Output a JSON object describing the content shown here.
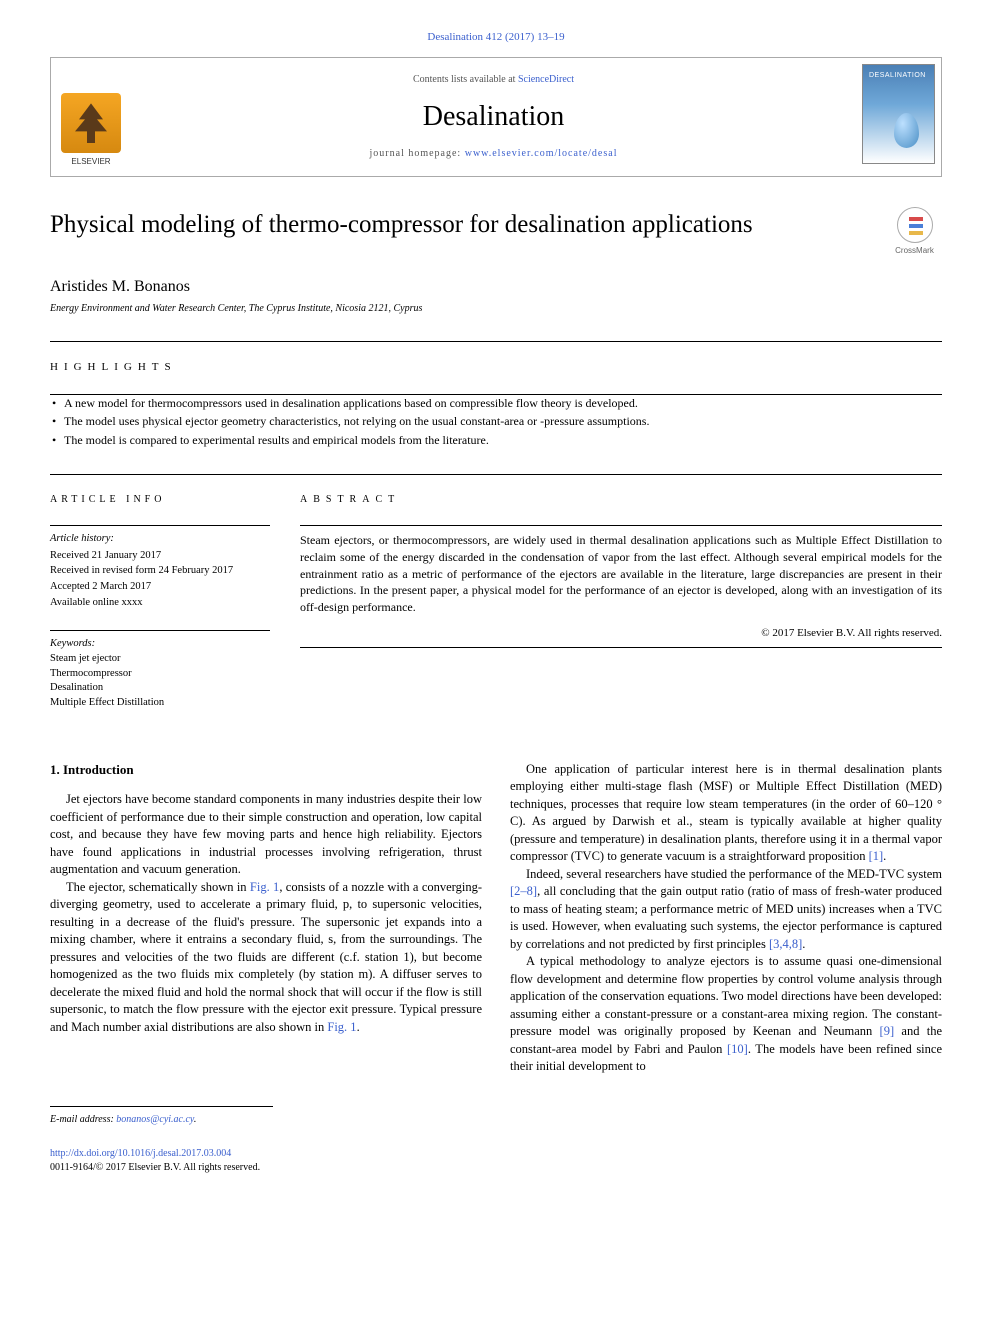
{
  "header": {
    "citation": "Desalination 412 (2017) 13–19",
    "contents_prefix": "Contents lists available at ",
    "contents_link": "ScienceDirect",
    "journal": "Desalination",
    "homepage_prefix": "journal homepage: ",
    "homepage_url": "www.elsevier.com/locate/desal",
    "publisher": "ELSEVIER",
    "cover_title": "DESALINATION"
  },
  "crossmark": {
    "label": "CrossMark"
  },
  "article": {
    "title": "Physical modeling of thermo-compressor for desalination applications",
    "author": "Aristides M. Bonanos",
    "affiliation": "Energy Environment and Water Research Center, The Cyprus Institute, Nicosia 2121, Cyprus"
  },
  "highlights": {
    "label": "highlights",
    "items": [
      "A new model for thermocompressors used in desalination applications based on compressible flow theory is developed.",
      "The model uses physical ejector geometry characteristics, not relying on the usual constant-area or -pressure assumptions.",
      "The model is compared to experimental results and empirical models from the literature."
    ]
  },
  "info": {
    "label": "article info",
    "history_head": "Article history:",
    "history": [
      "Received 21 January 2017",
      "Received in revised form 24 February 2017",
      "Accepted 2 March 2017",
      "Available online xxxx"
    ],
    "keywords_head": "Keywords:",
    "keywords": [
      "Steam jet ejector",
      "Thermocompressor",
      "Desalination",
      "Multiple Effect Distillation"
    ]
  },
  "abstract": {
    "label": "abstract",
    "text": "Steam ejectors, or thermocompressors, are widely used in thermal desalination applications such as Multiple Effect Distillation to reclaim some of the energy discarded in the condensation of vapor from the last effect. Although several empirical models for the entrainment ratio as a metric of performance of the ejectors are available in the literature, large discrepancies are present in their predictions. In the present paper, a physical model for the performance of an ejector is developed, along with an investigation of its off-design performance.",
    "copyright": "© 2017 Elsevier B.V. All rights reserved."
  },
  "body": {
    "section_head": "1. Introduction",
    "left": [
      "Jet ejectors have become standard components in many industries despite their low coefficient of performance due to their simple construction and operation, low capital cost, and because they have few moving parts and hence high reliability. Ejectors have found applications in industrial processes involving refrigeration, thrust augmentation and vacuum generation.",
      "The ejector, schematically shown in Fig. 1, consists of a nozzle with a converging-diverging geometry, used to accelerate a primary fluid, p, to supersonic velocities, resulting in a decrease of the fluid's pressure. The supersonic jet expands into a mixing chamber, where it entrains a secondary fluid, s, from the surroundings. The pressures and velocities of the two fluids are different (c.f. station 1), but become homogenized as the two fluids mix completely (by station m). A diffuser serves to decelerate the mixed fluid and hold the normal shock that will occur if the flow is still supersonic, to match the flow pressure with the ejector exit pressure. Typical pressure and Mach number axial distributions are also shown in Fig. 1."
    ],
    "right": [
      "One application of particular interest here is in thermal desalination plants employing either multi-stage flash (MSF) or Multiple Effect Distillation (MED) techniques, processes that require low steam temperatures (in the order of 60–120 ° C). As argued by Darwish et al., steam is typically available at higher quality (pressure and temperature) in desalination plants, therefore using it in a thermal vapor compressor (TVC) to generate vacuum is a straightforward proposition [1].",
      "Indeed, several researchers have studied the performance of the MED-TVC system [2–8], all concluding that the gain output ratio (ratio of mass of fresh-water produced to mass of heating steam; a performance metric of MED units) increases when a TVC is used. However, when evaluating such systems, the ejector performance is captured by correlations and not predicted by first principles [3,4,8].",
      "A typical methodology to analyze ejectors is to assume quasi one-dimensional flow development and determine flow properties by control volume analysis through application of the conservation equations. Two model directions have been developed: assuming either a constant-pressure or a constant-area mixing region. The constant-pressure model was originally proposed by Keenan and Neumann [9] and the constant-area model by Fabri and Paulon [10]. The models have been refined since their initial development to"
    ]
  },
  "footer": {
    "email_label": "E-mail address: ",
    "email": "bonanos@cyi.ac.cy",
    "doi": "http://dx.doi.org/10.1016/j.desal.2017.03.004",
    "issn_line": "0011-9164/© 2017 Elsevier B.V. All rights reserved."
  }
}
